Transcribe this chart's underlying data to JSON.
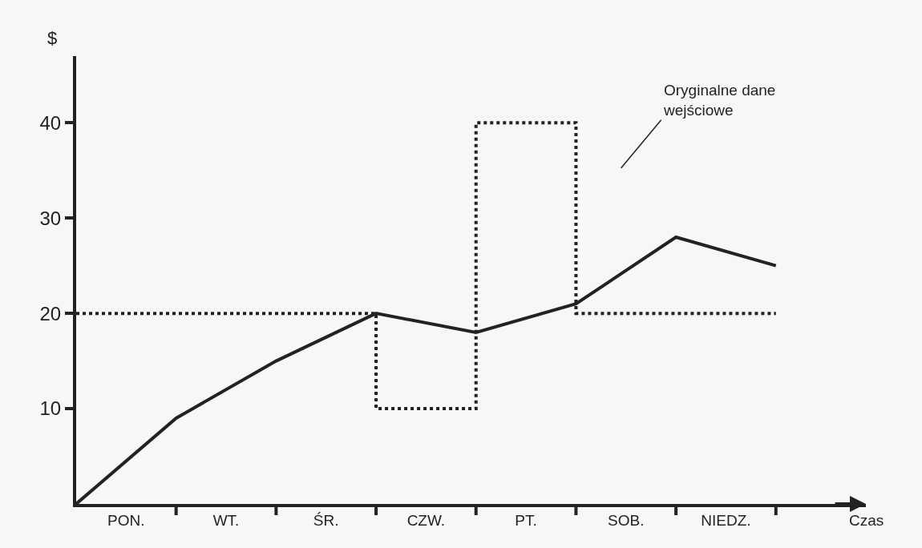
{
  "chart_data": {
    "type": "line",
    "xlabel": "Czas",
    "ylabel": "$",
    "categories": [
      null,
      "PON.",
      null,
      "WT.",
      null,
      "ŚR.",
      null,
      "CZW.",
      null,
      "PT.",
      null,
      "SOB.",
      null,
      "NIEDZ.",
      null
    ],
    "ylim": [
      0,
      47
    ],
    "yticks": [
      10,
      20,
      30,
      40
    ],
    "series": [
      {
        "type": "step",
        "color": "#222222",
        "line_style": "dotted",
        "values": [
          20,
          20,
          20,
          20,
          20,
          20,
          10,
          10,
          40,
          40,
          20,
          20,
          20,
          20,
          20
        ]
      },
      {
        "color": "#222222",
        "line_style": "solid",
        "values": [
          0,
          null,
          9,
          null,
          15,
          null,
          20,
          null,
          18,
          null,
          21,
          null,
          28,
          null,
          25
        ]
      }
    ],
    "annotations": [
      "Oryginalne dane\nwejściowe"
    ],
    "grid": false,
    "marker": "none"
  }
}
